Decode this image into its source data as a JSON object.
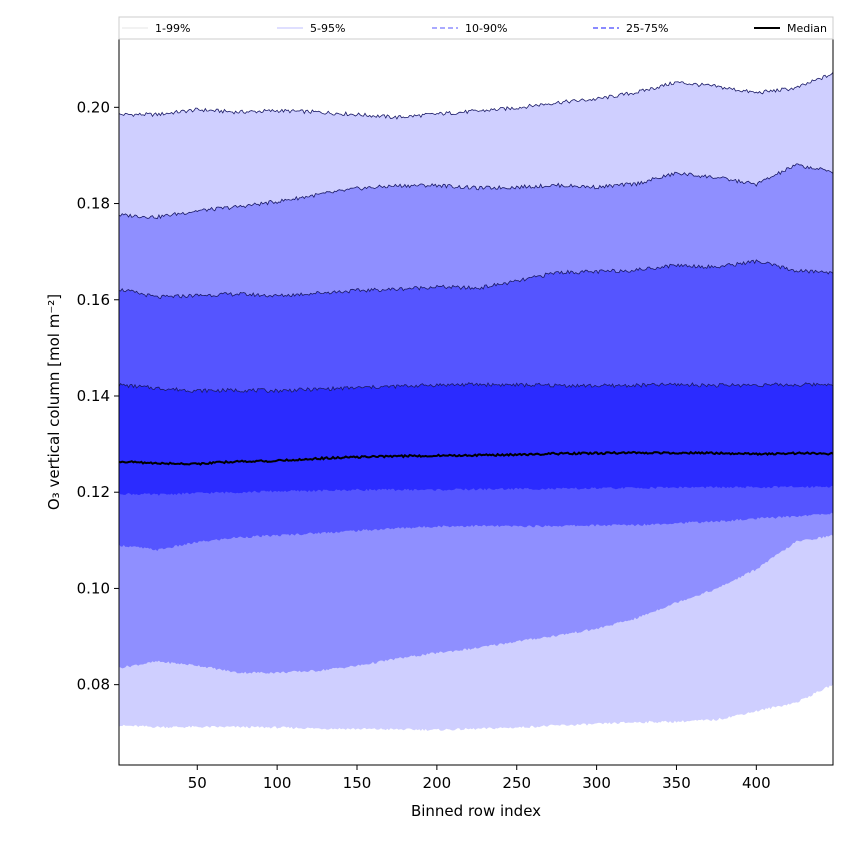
{
  "chart_data": {
    "type": "area",
    "xlabel": "Binned row index",
    "ylabel": "O₃ vertical column [mol m⁻²]",
    "xlim": [
      1,
      448
    ],
    "ylim": [
      0.0633,
      0.2142
    ],
    "xticks": [
      50,
      100,
      150,
      200,
      250,
      300,
      350,
      400
    ],
    "yticks": [
      0.08,
      0.1,
      0.12,
      0.14,
      0.16,
      0.18,
      0.2
    ],
    "ytick_labels": [
      "0.08",
      "0.10",
      "0.12",
      "0.14",
      "0.16",
      "0.18",
      "0.20"
    ],
    "legend_position": "top",
    "x": [
      1,
      25,
      50,
      75,
      100,
      125,
      150,
      175,
      200,
      225,
      250,
      275,
      300,
      325,
      350,
      375,
      400,
      425,
      448
    ],
    "bands": [
      {
        "name": "1-99%",
        "color": "#cfcfff",
        "edge_color": "#1a1a66",
        "lower": [
          0.0715,
          0.0712,
          0.0712,
          0.0712,
          0.0711,
          0.0709,
          0.0708,
          0.0707,
          0.0706,
          0.0708,
          0.0711,
          0.0715,
          0.0718,
          0.0722,
          0.0723,
          0.0727,
          0.0745,
          0.0763,
          0.08
        ],
        "upper": [
          0.1985,
          0.1985,
          0.1995,
          0.199,
          0.1993,
          0.199,
          0.1985,
          0.1979,
          0.1986,
          0.1992,
          0.1999,
          0.201,
          0.2017,
          0.2031,
          0.2052,
          0.2043,
          0.203,
          0.204,
          0.207
        ]
      },
      {
        "name": "5-95%",
        "color": "#8f8fff",
        "edge_color": "#1a1a66",
        "lower": [
          0.0835,
          0.0848,
          0.084,
          0.0825,
          0.0825,
          0.0829,
          0.0839,
          0.0854,
          0.0866,
          0.0876,
          0.089,
          0.0902,
          0.0916,
          0.0938,
          0.0971,
          0.0999,
          0.104,
          0.1097,
          0.111
        ],
        "upper": [
          0.1776,
          0.1772,
          0.1785,
          0.1793,
          0.1804,
          0.1818,
          0.1831,
          0.1837,
          0.1838,
          0.1832,
          0.1834,
          0.1838,
          0.1834,
          0.1841,
          0.1863,
          0.1854,
          0.184,
          0.188,
          0.1866
        ]
      },
      {
        "name": "10-90%",
        "color": "#5555ff",
        "edge_color": "#1a1a66",
        "lower": [
          0.109,
          0.108,
          0.1096,
          0.1106,
          0.111,
          0.1115,
          0.112,
          0.1125,
          0.1129,
          0.113,
          0.1129,
          0.113,
          0.1131,
          0.1132,
          0.1136,
          0.1139,
          0.1145,
          0.115,
          0.1156
        ],
        "upper": [
          0.1622,
          0.1605,
          0.1609,
          0.1612,
          0.1608,
          0.1614,
          0.1619,
          0.1622,
          0.1627,
          0.1624,
          0.1638,
          0.1657,
          0.1658,
          0.1662,
          0.1672,
          0.1668,
          0.168,
          0.166,
          0.1657
        ]
      },
      {
        "name": "25-75%",
        "color": "#2b2bff",
        "edge_color": "#1a1a66",
        "lower": [
          0.1197,
          0.1195,
          0.1198,
          0.12,
          0.1202,
          0.1203,
          0.1205,
          0.1205,
          0.1205,
          0.1206,
          0.1207,
          0.1207,
          0.1208,
          0.1209,
          0.121,
          0.121,
          0.121,
          0.1211,
          0.1212
        ],
        "upper": [
          0.1423,
          0.1416,
          0.1411,
          0.1412,
          0.1411,
          0.1414,
          0.1417,
          0.142,
          0.1423,
          0.1424,
          0.1423,
          0.1422,
          0.1421,
          0.1422,
          0.1424,
          0.1422,
          0.1423,
          0.1423,
          0.1425
        ]
      }
    ],
    "median": {
      "name": "Median",
      "color": "#000000",
      "values": [
        0.1264,
        0.126,
        0.1259,
        0.1264,
        0.1265,
        0.127,
        0.1273,
        0.1275,
        0.1276,
        0.1277,
        0.1278,
        0.128,
        0.1281,
        0.1282,
        0.1282,
        0.1281,
        0.1279,
        0.1281,
        0.128
      ]
    }
  }
}
